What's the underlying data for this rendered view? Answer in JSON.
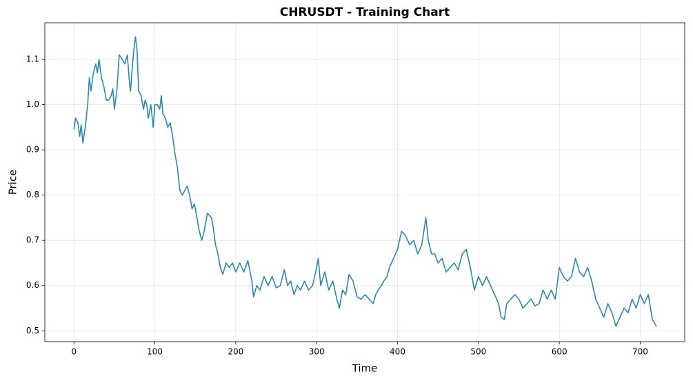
{
  "chart_data": {
    "type": "line",
    "title": "CHRUSDT - Training Chart",
    "x_label": "Time",
    "y_label": "Price",
    "color": "#2e86ab",
    "grid": true,
    "xlim": [
      -36,
      755
    ],
    "ylim": [
      0.476,
      1.181
    ],
    "xticks": [
      0,
      100,
      200,
      300,
      400,
      500,
      600,
      700
    ],
    "yticks": [
      0.5,
      0.6,
      0.7,
      0.8,
      0.9,
      {
        "value": 1,
        "label": "1.0"
      },
      1.1
    ],
    "x": [
      0,
      2,
      5,
      7,
      9,
      11,
      14,
      17,
      19,
      21,
      24,
      27,
      29,
      31,
      34,
      37,
      40,
      43,
      46,
      48,
      50,
      53,
      56,
      60,
      63,
      66,
      69,
      70,
      72,
      74,
      76,
      78,
      80,
      83,
      86,
      88,
      90,
      92,
      95,
      98,
      100,
      103,
      106,
      108,
      110,
      113,
      116,
      119,
      122,
      125,
      128,
      131,
      134,
      137,
      140,
      143,
      146,
      149,
      152,
      155,
      158,
      161,
      165,
      170,
      172,
      175,
      178,
      181,
      184,
      188,
      192,
      196,
      200,
      205,
      210,
      215,
      220,
      222,
      226,
      230,
      235,
      240,
      245,
      250,
      255,
      260,
      264,
      268,
      272,
      276,
      280,
      285,
      290,
      295,
      300,
      302,
      305,
      310,
      315,
      320,
      325,
      328,
      332,
      336,
      340,
      345,
      350,
      355,
      360,
      365,
      370,
      373,
      376,
      380,
      383,
      387,
      390,
      395,
      400,
      405,
      410,
      415,
      420,
      425,
      430,
      435,
      438,
      442,
      446,
      450,
      455,
      460,
      465,
      470,
      475,
      480,
      485,
      490,
      495,
      500,
      505,
      510,
      515,
      520,
      525,
      528,
      532,
      535,
      540,
      545,
      550,
      555,
      560,
      565,
      570,
      575,
      580,
      585,
      590,
      595,
      600,
      605,
      610,
      615,
      620,
      625,
      630,
      635,
      640,
      645,
      650,
      655,
      660,
      665,
      670,
      675,
      680,
      685,
      690,
      695,
      700,
      705,
      710,
      715,
      720
    ],
    "values": [
      0.945,
      0.97,
      0.96,
      0.93,
      0.955,
      0.915,
      0.95,
      1.0,
      1.06,
      1.03,
      1.07,
      1.09,
      1.07,
      1.1,
      1.06,
      1.04,
      1.01,
      1.01,
      1.02,
      1.035,
      0.99,
      1.03,
      1.11,
      1.1,
      1.09,
      1.11,
      1.04,
      1.03,
      1.08,
      1.12,
      1.15,
      1.12,
      1.03,
      1.02,
      0.99,
      1.01,
      1.0,
      0.97,
      1.0,
      0.95,
      1.0,
      1.0,
      0.99,
      1.02,
      0.98,
      0.97,
      0.95,
      0.96,
      0.93,
      0.89,
      0.86,
      0.81,
      0.8,
      0.81,
      0.82,
      0.8,
      0.77,
      0.78,
      0.75,
      0.72,
      0.7,
      0.72,
      0.76,
      0.75,
      0.73,
      0.69,
      0.67,
      0.64,
      0.625,
      0.65,
      0.64,
      0.65,
      0.63,
      0.65,
      0.63,
      0.655,
      0.61,
      0.575,
      0.6,
      0.59,
      0.62,
      0.6,
      0.62,
      0.595,
      0.6,
      0.635,
      0.6,
      0.61,
      0.58,
      0.6,
      0.59,
      0.61,
      0.59,
      0.6,
      0.64,
      0.66,
      0.6,
      0.63,
      0.59,
      0.61,
      0.57,
      0.55,
      0.59,
      0.58,
      0.625,
      0.61,
      0.575,
      0.57,
      0.58,
      0.57,
      0.56,
      0.58,
      0.59,
      0.6,
      0.61,
      0.62,
      0.64,
      0.66,
      0.68,
      0.72,
      0.71,
      0.69,
      0.7,
      0.67,
      0.69,
      0.75,
      0.7,
      0.67,
      0.67,
      0.65,
      0.66,
      0.63,
      0.64,
      0.65,
      0.635,
      0.67,
      0.68,
      0.64,
      0.59,
      0.62,
      0.6,
      0.62,
      0.6,
      0.58,
      0.56,
      0.53,
      0.525,
      0.56,
      0.57,
      0.58,
      0.57,
      0.55,
      0.56,
      0.57,
      0.555,
      0.56,
      0.59,
      0.57,
      0.59,
      0.57,
      0.64,
      0.62,
      0.61,
      0.62,
      0.66,
      0.63,
      0.62,
      0.64,
      0.61,
      0.57,
      0.55,
      0.53,
      0.56,
      0.54,
      0.51,
      0.53,
      0.55,
      0.54,
      0.57,
      0.55,
      0.58,
      0.56,
      0.58,
      0.525,
      0.51
    ]
  }
}
